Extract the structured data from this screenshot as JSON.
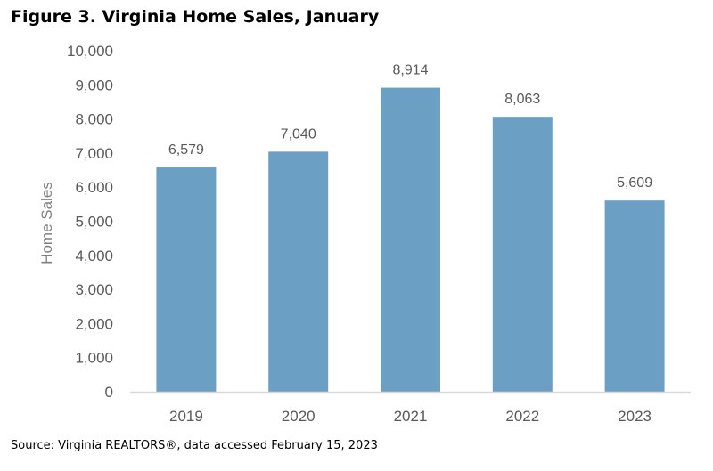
{
  "figure": {
    "title": "Figure 3. Virginia Home Sales, January",
    "source": "Source: Virginia REALTORS®, data accessed February 15, 2023"
  },
  "chart_data": {
    "type": "bar",
    "categories": [
      "2019",
      "2020",
      "2021",
      "2022",
      "2023"
    ],
    "values": [
      6579,
      7040,
      8914,
      8063,
      5609
    ],
    "data_labels": [
      "6,579",
      "7,040",
      "8,914",
      "8,063",
      "5,609"
    ],
    "xlabel": "",
    "ylabel": "Home Sales",
    "ylim": [
      0,
      10000
    ],
    "yticks": [
      0,
      1000,
      2000,
      3000,
      4000,
      5000,
      6000,
      7000,
      8000,
      9000,
      10000
    ],
    "ytick_labels": [
      "0",
      "1,000",
      "2,000",
      "3,000",
      "4,000",
      "5,000",
      "6,000",
      "7,000",
      "8,000",
      "9,000",
      "10,000"
    ],
    "grid": false,
    "legend": "none",
    "bar_color": "#6b9fc4",
    "axis_color": "#d9d9d9",
    "text_color": "#595959"
  }
}
